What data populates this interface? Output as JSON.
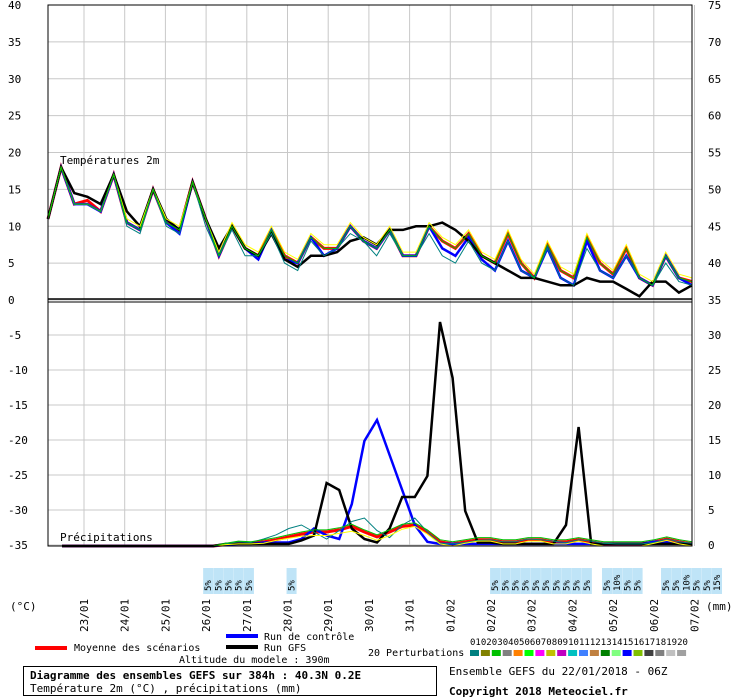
{
  "chart_data": {
    "type": "line",
    "temperature_panel": {
      "label": "Températures 2m",
      "yticks": [
        0,
        5,
        10,
        15,
        20,
        25,
        30,
        35,
        40
      ],
      "right_ticks": [
        35,
        40,
        45,
        50,
        55,
        60,
        65,
        70,
        75
      ],
      "ylim": [
        0,
        40
      ]
    },
    "precip_panel": {
      "label": "Précipitations",
      "yticks": [
        -5,
        -10,
        -15,
        -20,
        -25,
        -30,
        -35
      ],
      "right_ticks": [
        30,
        25,
        20,
        15,
        10,
        5,
        0
      ],
      "ylim": [
        0,
        32
      ]
    },
    "x_unit_left": "(°C)",
    "x_unit_right": "(mm)",
    "day_labels": [
      "23/01",
      "24/01",
      "25/01",
      "26/01",
      "27/01",
      "28/01",
      "29/01",
      "30/01",
      "31/01",
      "01/02",
      "02/02",
      "03/02",
      "04/02",
      "05/02",
      "06/02",
      "07/02"
    ],
    "series": [
      {
        "name": "Moyenne des scénarios",
        "color": "#ff0000",
        "temperature": [
          11,
          18,
          13,
          13.5,
          12,
          17,
          10.5,
          9.5,
          15,
          10.5,
          9.5,
          16,
          11,
          6,
          10,
          7,
          6,
          9.5,
          6,
          5,
          8.5,
          7,
          7,
          10,
          8,
          7,
          9.5,
          6,
          6,
          10,
          8,
          7,
          9,
          6,
          5,
          9,
          5,
          3,
          7.5,
          4,
          3,
          8.5,
          5,
          3.5,
          7,
          3,
          2,
          6,
          3,
          2.5
        ],
        "precip": [
          0,
          0,
          0,
          0,
          0,
          0,
          0,
          0,
          0,
          0,
          0,
          0,
          0,
          0.2,
          0.4,
          0.4,
          0.6,
          0.9,
          1.3,
          1.7,
          2.0,
          2.0,
          2.3,
          2.8,
          2.0,
          1.3,
          2.0,
          2.8,
          3.0,
          2.0,
          0.6,
          0.3,
          0.6,
          0.9,
          0.9,
          0.6,
          0.6,
          0.9,
          0.9,
          0.6,
          0.6,
          0.9,
          0.6,
          0.3,
          0.3,
          0.3,
          0.3,
          0.6,
          1.0,
          0.6,
          0.3
        ]
      },
      {
        "name": "Run de contrôle",
        "color": "#0000ff",
        "temperature": [
          11,
          18,
          13,
          13,
          12,
          17,
          10.5,
          9.5,
          15,
          10.5,
          9,
          16,
          11,
          6,
          10,
          7,
          5.5,
          9.5,
          5.5,
          5,
          8.5,
          6,
          7,
          10,
          8,
          7,
          9.5,
          6,
          6,
          10,
          7,
          6,
          8.5,
          5.5,
          4,
          8,
          4,
          3,
          7,
          3,
          2,
          8,
          4,
          3,
          6,
          3,
          2,
          6,
          3,
          2
        ],
        "precip": [
          0,
          0,
          0,
          0,
          0,
          0,
          0,
          0,
          0,
          0,
          0,
          0,
          0,
          0.2,
          0.3,
          0.3,
          0.5,
          0.5,
          0.5,
          1.0,
          2.5,
          1.5,
          1.0,
          6,
          15,
          18,
          13,
          8,
          3,
          0.6,
          0.3,
          0.3,
          0.3,
          0.3,
          0.3,
          0.3,
          0.3,
          0.3,
          0.3,
          0.3,
          0.3,
          0.3,
          0.3,
          0.3,
          0.3,
          0.3,
          0.3,
          0.6,
          0.6,
          0.3,
          0.3
        ]
      },
      {
        "name": "Run GFS",
        "color": "#000000",
        "temperature": [
          11,
          18,
          14.5,
          14,
          13,
          17,
          12,
          10,
          15,
          11,
          9.5,
          16,
          11,
          7,
          10,
          7,
          6,
          9,
          5.5,
          4.5,
          6,
          6,
          6.5,
          8,
          8.5,
          7.5,
          9.5,
          9.5,
          10,
          10,
          10.5,
          9.5,
          8,
          6,
          5,
          4,
          3,
          3,
          2.5,
          2,
          2,
          3,
          2.5,
          2.5,
          1.5,
          0.5,
          2.5,
          2.5,
          1,
          2
        ],
        "precip": [
          0,
          0,
          0,
          0,
          0,
          0,
          0,
          0,
          0,
          0,
          0,
          0,
          0,
          0.3,
          0.3,
          0.3,
          0.3,
          0.3,
          0.3,
          0.8,
          1.5,
          9,
          8,
          2.5,
          1.0,
          0.5,
          2.5,
          7,
          7,
          10,
          32,
          24,
          5,
          0.5,
          0.5,
          0.3,
          0.3,
          0.3,
          0.3,
          0.3,
          3,
          17,
          0.3,
          0.3,
          0.3,
          0.3,
          0.3,
          0.3,
          0.3,
          0.3,
          0.3
        ]
      },
      {
        "name": "Perturbation 01",
        "color": "#008080",
        "temperature": [
          11,
          18,
          13,
          13,
          12,
          17,
          10,
          9,
          15,
          10,
          9,
          16,
          10,
          6,
          9.5,
          6,
          6,
          9,
          5,
          4,
          8,
          6,
          7,
          9,
          8,
          6,
          9,
          6,
          6,
          9,
          6,
          5,
          8,
          5,
          4,
          8,
          4,
          3,
          7,
          3,
          2,
          7,
          4,
          3,
          6,
          3,
          2,
          5,
          2.5,
          2
        ],
        "precip": [
          0,
          0,
          0,
          0,
          0,
          0,
          0,
          0,
          0,
          0,
          0,
          0,
          0,
          0.3,
          0.6,
          0.5,
          1,
          1.6,
          2.5,
          3,
          2,
          1,
          2.2,
          3.5,
          4,
          2.2,
          1.2,
          3,
          4,
          2,
          0.4,
          0.3,
          0.5,
          0.8,
          0.9,
          0.6,
          0.6,
          1,
          0.9,
          0.7,
          0.5,
          0.9,
          0.7,
          0.4,
          0.3,
          0.3,
          0.3,
          0.5,
          1,
          0.6,
          0.4
        ]
      },
      {
        "name": "Perturbation 02",
        "color": "#ffff00",
        "temperature": [
          11,
          18,
          13,
          13,
          12,
          17,
          11,
          10,
          15,
          11,
          10,
          16,
          11,
          6.5,
          10.5,
          7.5,
          6.5,
          10,
          6.5,
          5.5,
          9,
          7.5,
          7.5,
          10.5,
          8.5,
          7.5,
          10,
          6.5,
          6.5,
          10.5,
          8.5,
          7.5,
          9.5,
          6.5,
          5.5,
          9.5,
          5.5,
          3.5,
          8,
          4.5,
          3.5,
          9,
          5.5,
          4,
          7.5,
          3.5,
          2.5,
          6.5,
          3.5,
          3
        ],
        "precip": [
          0,
          0,
          0,
          0,
          0,
          0,
          0,
          0,
          0,
          0,
          0,
          0,
          0,
          0.2,
          0.3,
          0.3,
          0.4,
          0.8,
          1.1,
          1.4,
          1.5,
          1.5,
          1.8,
          2.1,
          1.5,
          0.8,
          1.5,
          2.4,
          2.8,
          1.7,
          0.3,
          0,
          0.4,
          0.7,
          0.7,
          0.3,
          0.3,
          0.7,
          0.7,
          0.3,
          0.3,
          0.7,
          0.3,
          0,
          0,
          0,
          0,
          0.4,
          0.8,
          0.3,
          0
        ]
      },
      {
        "name": "Perturbation 03",
        "color": "#00c000",
        "temperature": [
          11,
          18,
          13,
          13,
          12,
          17,
          10.5,
          9.5,
          15,
          10.5,
          9.5,
          16,
          11,
          6,
          10,
          7,
          6,
          9.5,
          6,
          5,
          8.5,
          7,
          7,
          10,
          8,
          7,
          9.5,
          6,
          6,
          10,
          8,
          7,
          9,
          6,
          5,
          9,
          5,
          3,
          7.5,
          4,
          3,
          8.5,
          5,
          3.5,
          7,
          3,
          2,
          6,
          3,
          2.5
        ],
        "precip": [
          0,
          0,
          0,
          0,
          0,
          0,
          0,
          0,
          0,
          0,
          0,
          0,
          0,
          0.4,
          0.7,
          0.6,
          0.9,
          1.2,
          1.6,
          2,
          2.3,
          2.3,
          2.6,
          3.1,
          2.3,
          1.6,
          2.3,
          3.1,
          3.3,
          2.3,
          0.9,
          0.6,
          0.9,
          1.2,
          1.2,
          0.9,
          0.9,
          1.2,
          1.2,
          0.9,
          0.9,
          1.2,
          0.9,
          0.6,
          0.6,
          0.6,
          0.6,
          0.9,
          1.3,
          0.9,
          0.6
        ]
      }
    ],
    "snow_labels": [
      {
        "day_index": 3.05,
        "labels": [
          "5%",
          "5%",
          "5%",
          "5%",
          "5%"
        ]
      },
      {
        "day_index": 5.1,
        "labels": [
          "5%"
        ]
      },
      {
        "day_index": 10.1,
        "labels": [
          "5%",
          "5%",
          "5%",
          "5%",
          "5%",
          "5%",
          "5%",
          "5%",
          "5%",
          "5%"
        ]
      },
      {
        "day_index": 12.85,
        "labels": [
          "5%",
          "10%",
          "5%",
          "5%"
        ]
      },
      {
        "day_index": 14.3,
        "labels": [
          "5%",
          "5%",
          "10%",
          "5%",
          "5%",
          "15%"
        ]
      }
    ],
    "legend": {
      "mean": "Moyenne des scénarios",
      "control": "Run de contrôle",
      "gfs": "Run GFS",
      "perturbations": "20 Perturbations",
      "perturbation_ids": [
        "01",
        "02",
        "03",
        "04",
        "05",
        "06",
        "07",
        "08",
        "09",
        "10",
        "11",
        "12",
        "13",
        "14",
        "15",
        "16",
        "17",
        "18",
        "19",
        "20"
      ],
      "perturbation_colors": [
        "#008080",
        "#808000",
        "#00c000",
        "#808080",
        "#ff8000",
        "#00ff00",
        "#ff00ff",
        "#c0c000",
        "#c000c0",
        "#00c0c0",
        "#4080ff",
        "#c08040",
        "#008000",
        "#80ff80",
        "#0000ff",
        "#80c000",
        "#404040",
        "#808080",
        "#c0c0c0",
        "#a0a0a0"
      ]
    },
    "altitude": "Altitude du modele : 390m"
  },
  "footer": {
    "title": "Diagramme des ensembles GEFS sur 384h : 40.3N 0.2E",
    "subtitle": "Température 2m (°C) , précipitations (mm)",
    "run_info": "Ensemble GEFS du 22/01/2018 - 06Z",
    "copyright": "Copyright 2018 Meteociel.fr"
  }
}
